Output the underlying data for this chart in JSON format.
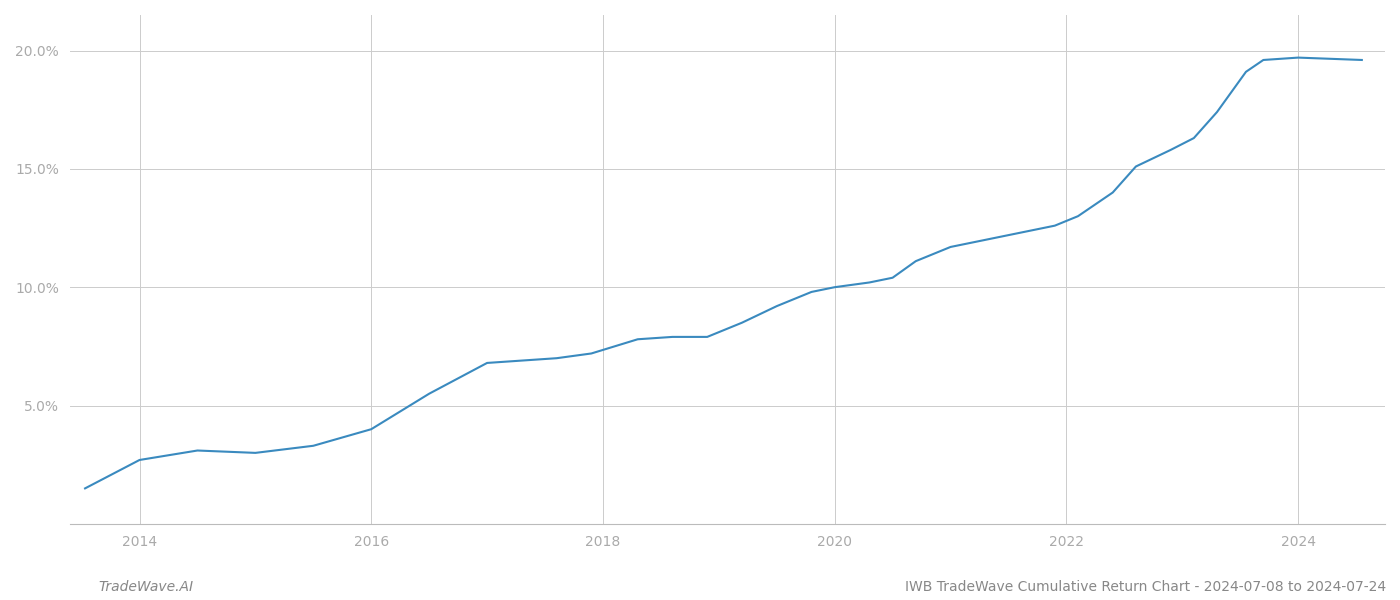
{
  "title": "IWB TradeWave Cumulative Return Chart - 2024-07-08 to 2024-07-24",
  "watermark": "TradeWave.AI",
  "x_years": [
    2014,
    2016,
    2018,
    2020,
    2022,
    2024
  ],
  "y_ticks": [
    0.05,
    0.1,
    0.15,
    0.2
  ],
  "y_tick_labels": [
    "5.0%",
    "10.0%",
    "15.0%",
    "20.0%"
  ],
  "line_color": "#3a8abf",
  "line_width": 1.5,
  "background_color": "#ffffff",
  "grid_color": "#cccccc",
  "x_data": [
    2013.53,
    2014.0,
    2014.5,
    2015.0,
    2015.5,
    2016.0,
    2016.5,
    2017.0,
    2017.3,
    2017.6,
    2017.9,
    2018.1,
    2018.3,
    2018.6,
    2018.9,
    2019.2,
    2019.5,
    2019.8,
    2020.0,
    2020.3,
    2020.5,
    2020.7,
    2021.0,
    2021.3,
    2021.6,
    2021.9,
    2022.1,
    2022.4,
    2022.6,
    2022.9,
    2023.1,
    2023.3,
    2023.55,
    2023.7,
    2024.0,
    2024.55
  ],
  "y_data": [
    0.015,
    0.027,
    0.031,
    0.03,
    0.033,
    0.04,
    0.055,
    0.068,
    0.069,
    0.07,
    0.072,
    0.075,
    0.078,
    0.079,
    0.079,
    0.085,
    0.092,
    0.098,
    0.1,
    0.102,
    0.104,
    0.111,
    0.117,
    0.12,
    0.123,
    0.126,
    0.13,
    0.14,
    0.151,
    0.158,
    0.163,
    0.174,
    0.191,
    0.196,
    0.197,
    0.196
  ],
  "xlim": [
    2013.4,
    2024.75
  ],
  "ylim": [
    0.0,
    0.215
  ],
  "title_fontsize": 10,
  "tick_fontsize": 10,
  "watermark_fontsize": 10
}
